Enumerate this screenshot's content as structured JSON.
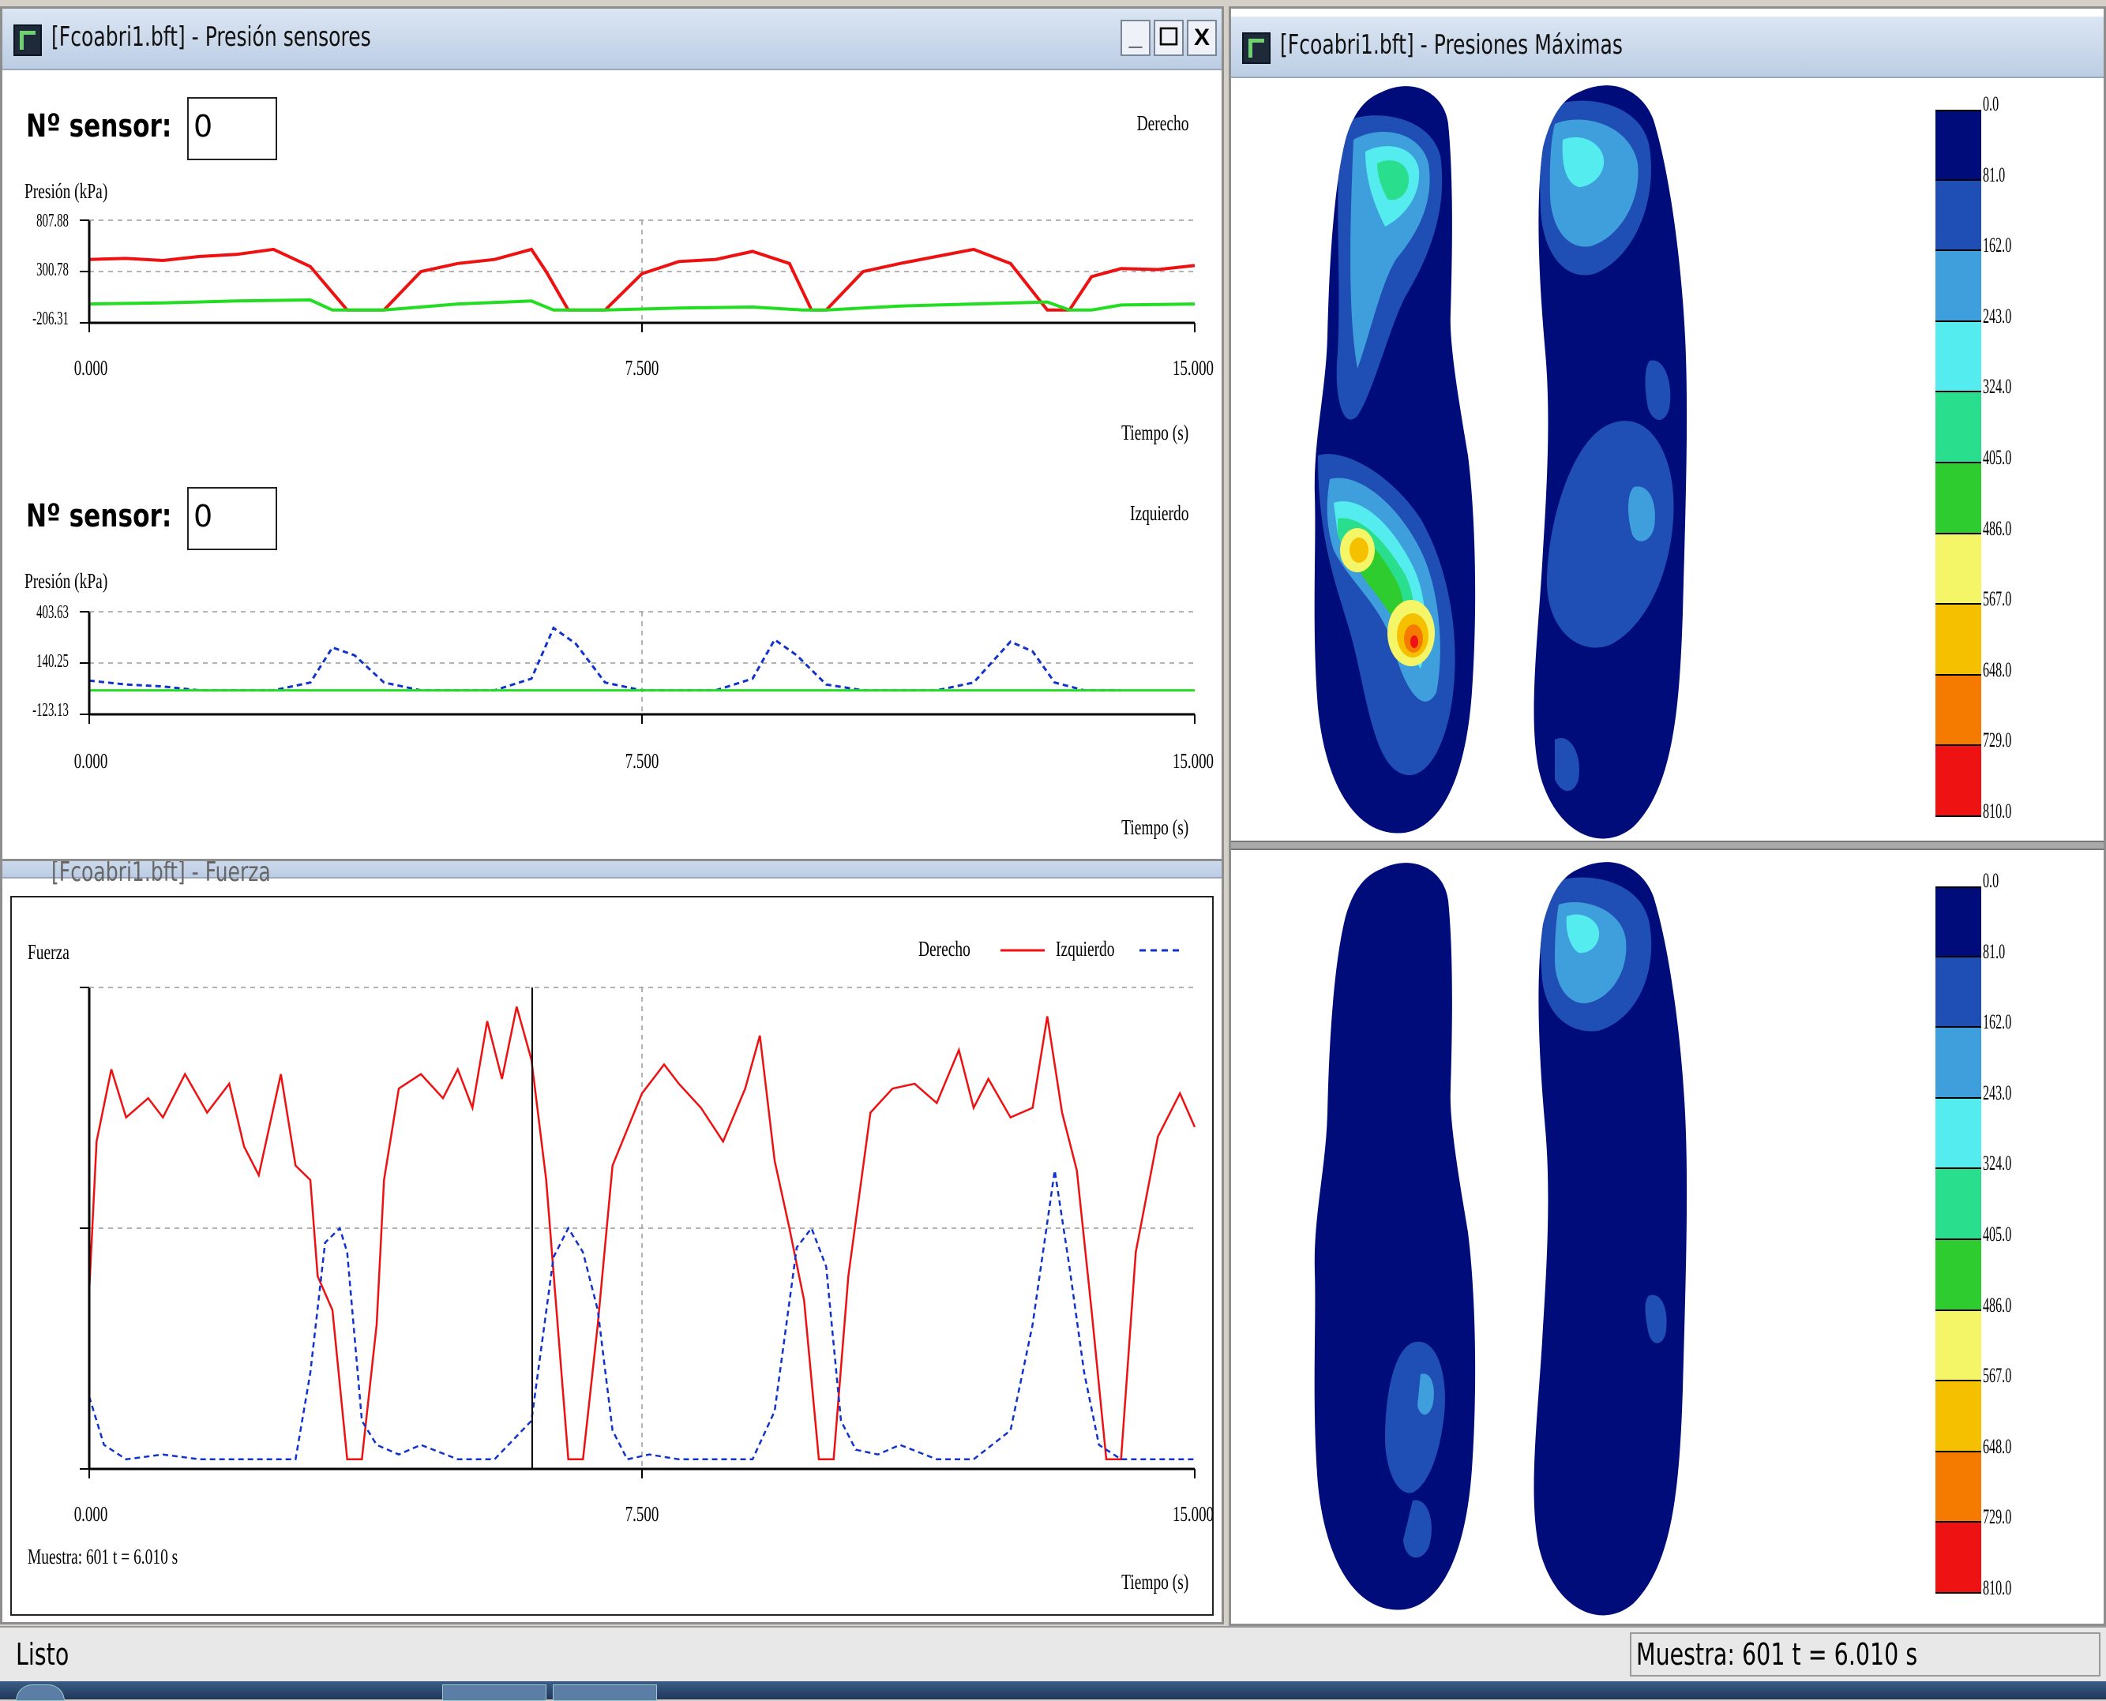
{
  "windows": {
    "sensors": {
      "title": "[Fcoabri1.bft] - Presión sensores",
      "controls": [
        "_",
        "☐",
        "X"
      ],
      "right": {
        "sensor_label": "Nº sensor:",
        "sensor_value": "0",
        "side": "Derecho",
        "ylabel": "Presión (kPa)",
        "yticks": [
          "807.88",
          "300.78",
          "-206.31"
        ],
        "xticks": [
          "0.000",
          "7.500",
          "15.000"
        ],
        "xlabel": "Tiempo (s)"
      },
      "left": {
        "sensor_label": "Nº sensor:",
        "sensor_value": "0",
        "side": "Izquierdo",
        "ylabel": "Presión (kPa)",
        "yticks": [
          "403.63",
          "140.25",
          "-123.13"
        ],
        "xticks": [
          "0.000",
          "7.500",
          "15.000"
        ],
        "xlabel": "Tiempo (s)"
      }
    },
    "force": {
      "title": "[Fcoabri1.bft] - Fuerza",
      "ylabel": "Fuerza",
      "legend_right": "Derecho",
      "legend_left": "Izquierdo",
      "xticks": [
        "0.000",
        "7.500",
        "15.000"
      ],
      "xlabel": "Tiempo (s)",
      "sample_readout": "Muestra: 601   t = 6.010 s"
    },
    "max_pressure": {
      "title": "[Fcoabri1.bft] - Presiones Máximas",
      "scale_labels": [
        "0.0",
        "81.0",
        "162.0",
        "243.0",
        "324.0",
        "405.0",
        "486.0",
        "567.0",
        "648.0",
        "729.0",
        "810.0"
      ],
      "scale_colors": [
        "#000c7a",
        "#1f4fb5",
        "#3f9fdc",
        "#55ecf0",
        "#29de8c",
        "#2fcc2f",
        "#f5f568",
        "#f5c000",
        "#f57a00",
        "#ee1212"
      ]
    }
  },
  "chart_data": [
    {
      "type": "line",
      "title": "",
      "ylabel": "Presión (kPa)",
      "xlabel": "Tiempo (s)",
      "xlim": [
        0,
        15
      ],
      "ylim": [
        -206.31,
        807.88
      ],
      "series": [
        {
          "name": "",
          "color": "#ee1111",
          "x": [
            0,
            0.5,
            1,
            1.5,
            2,
            2.5,
            3,
            3.5,
            4,
            4.5,
            5,
            5.5,
            6,
            6.2,
            6.5,
            7,
            7.5,
            8,
            8.5,
            9,
            9.5,
            9.8,
            10,
            10.5,
            11,
            11.5,
            12,
            12.5,
            13,
            13.3,
            13.6,
            14,
            14.5,
            15
          ],
          "y": [
            420,
            430,
            410,
            450,
            470,
            520,
            350,
            -80,
            -80,
            300,
            380,
            420,
            520,
            300,
            -80,
            -80,
            280,
            400,
            420,
            500,
            380,
            -80,
            -80,
            300,
            380,
            450,
            520,
            380,
            -80,
            -80,
            250,
            330,
            320,
            360
          ]
        },
        {
          "name": "",
          "color": "#22dd22",
          "x": [
            0,
            1,
            2,
            3,
            3.3,
            4,
            5,
            6,
            6.3,
            6.6,
            7,
            8,
            9,
            9.7,
            10,
            11,
            12,
            13,
            13.3,
            13.6,
            14,
            15
          ],
          "y": [
            -20,
            -10,
            10,
            20,
            -80,
            -80,
            -20,
            10,
            -80,
            -80,
            -80,
            -60,
            -50,
            -80,
            -80,
            -40,
            -20,
            0,
            -80,
            -80,
            -30,
            -20
          ]
        }
      ]
    },
    {
      "type": "line",
      "title": "",
      "ylabel": "Presión (kPa)",
      "xlabel": "Tiempo (s)",
      "xlim": [
        0,
        15
      ],
      "ylim": [
        -123.13,
        403.63
      ],
      "series": [
        {
          "name": "",
          "color": "#1133cc",
          "x": [
            0,
            0.5,
            1,
            1.5,
            2,
            2.5,
            3,
            3.3,
            3.6,
            4,
            4.5,
            5,
            5.5,
            6,
            6.3,
            6.6,
            7,
            7.5,
            8,
            8.5,
            9,
            9.3,
            9.6,
            10,
            10.5,
            11,
            11.5,
            12,
            12.5,
            12.8,
            13.1,
            13.5,
            14
          ],
          "y": [
            50,
            30,
            20,
            0,
            0,
            0,
            40,
            220,
            180,
            40,
            0,
            0,
            0,
            60,
            320,
            240,
            40,
            0,
            0,
            0,
            60,
            260,
            180,
            30,
            0,
            0,
            0,
            40,
            250,
            200,
            40,
            0,
            0
          ]
        },
        {
          "name": "",
          "color": "#22dd22",
          "x": [
            0,
            15
          ],
          "y": [
            0,
            0
          ]
        }
      ]
    },
    {
      "type": "line",
      "title": "",
      "ylabel": "Fuerza",
      "xlabel": "Tiempo (s)",
      "xlim": [
        0,
        15
      ],
      "ylim": [
        0,
        1
      ],
      "series": [
        {
          "name": "Derecho",
          "color": "#ee1111",
          "x": [
            0,
            0.1,
            0.3,
            0.5,
            0.8,
            1,
            1.3,
            1.6,
            1.9,
            2.1,
            2.3,
            2.6,
            2.8,
            3,
            3.1,
            3.3,
            3.5,
            3.7,
            3.9,
            4,
            4.2,
            4.5,
            4.8,
            5,
            5.2,
            5.4,
            5.6,
            5.8,
            6,
            6.2,
            6.5,
            6.7,
            6.9,
            7.1,
            7.5,
            7.8,
            8,
            8.3,
            8.6,
            8.9,
            9.1,
            9.3,
            9.5,
            9.7,
            9.9,
            10.1,
            10.3,
            10.6,
            10.9,
            11.2,
            11.5,
            11.8,
            12,
            12.2,
            12.5,
            12.8,
            13,
            13.2,
            13.4,
            13.6,
            13.8,
            14,
            14.2,
            14.5,
            14.8,
            15
          ],
          "y": [
            0.37,
            0.68,
            0.83,
            0.73,
            0.77,
            0.73,
            0.82,
            0.74,
            0.8,
            0.67,
            0.61,
            0.82,
            0.63,
            0.6,
            0.4,
            0.33,
            0.02,
            0.02,
            0.3,
            0.6,
            0.79,
            0.82,
            0.77,
            0.83,
            0.75,
            0.93,
            0.81,
            0.96,
            0.85,
            0.6,
            0.02,
            0.02,
            0.3,
            0.63,
            0.78,
            0.84,
            0.8,
            0.75,
            0.68,
            0.79,
            0.9,
            0.64,
            0.5,
            0.35,
            0.02,
            0.02,
            0.4,
            0.74,
            0.79,
            0.8,
            0.76,
            0.87,
            0.75,
            0.81,
            0.73,
            0.75,
            0.94,
            0.74,
            0.62,
            0.33,
            0.02,
            0.02,
            0.45,
            0.69,
            0.78,
            0.71
          ]
        },
        {
          "name": "Izquierdo",
          "color": "#1133cc",
          "x": [
            0,
            0.2,
            0.5,
            1,
            1.5,
            2,
            2.5,
            2.8,
            3,
            3.2,
            3.4,
            3.5,
            3.7,
            3.9,
            4.2,
            4.5,
            5,
            5.5,
            6,
            6.3,
            6.5,
            6.7,
            6.9,
            7.1,
            7.3,
            7.6,
            8,
            8.5,
            9,
            9.3,
            9.6,
            9.8,
            10,
            10.2,
            10.4,
            10.7,
            11,
            11.5,
            12,
            12.5,
            12.8,
            13.1,
            13.3,
            13.5,
            13.7,
            14,
            14.5,
            15
          ],
          "y": [
            0.15,
            0.05,
            0.02,
            0.03,
            0.02,
            0.02,
            0.02,
            0.02,
            0.2,
            0.47,
            0.5,
            0.45,
            0.1,
            0.05,
            0.03,
            0.05,
            0.02,
            0.02,
            0.1,
            0.44,
            0.5,
            0.45,
            0.33,
            0.08,
            0.02,
            0.03,
            0.02,
            0.02,
            0.02,
            0.12,
            0.46,
            0.5,
            0.42,
            0.1,
            0.04,
            0.03,
            0.05,
            0.02,
            0.02,
            0.08,
            0.3,
            0.62,
            0.42,
            0.2,
            0.05,
            0.02,
            0.02,
            0.02
          ]
        }
      ]
    }
  ]
}
